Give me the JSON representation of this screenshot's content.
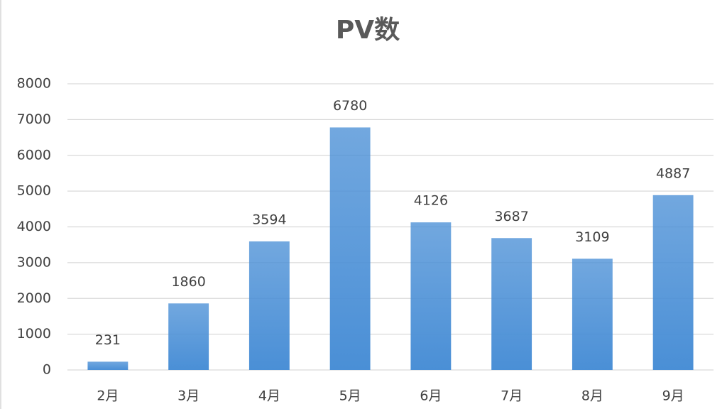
{
  "chart_data": {
    "type": "bar",
    "title": "PV数",
    "categories": [
      "2月",
      "3月",
      "4月",
      "5月",
      "6月",
      "7月",
      "8月",
      "9月"
    ],
    "values": [
      231,
      1860,
      3594,
      6780,
      4126,
      3687,
      3109,
      4887
    ],
    "color": "#4a8fd6",
    "ylim": [
      0,
      8000
    ],
    "yticks": [
      0,
      1000,
      2000,
      3000,
      4000,
      5000,
      6000,
      7000,
      8000
    ],
    "grid": true
  }
}
